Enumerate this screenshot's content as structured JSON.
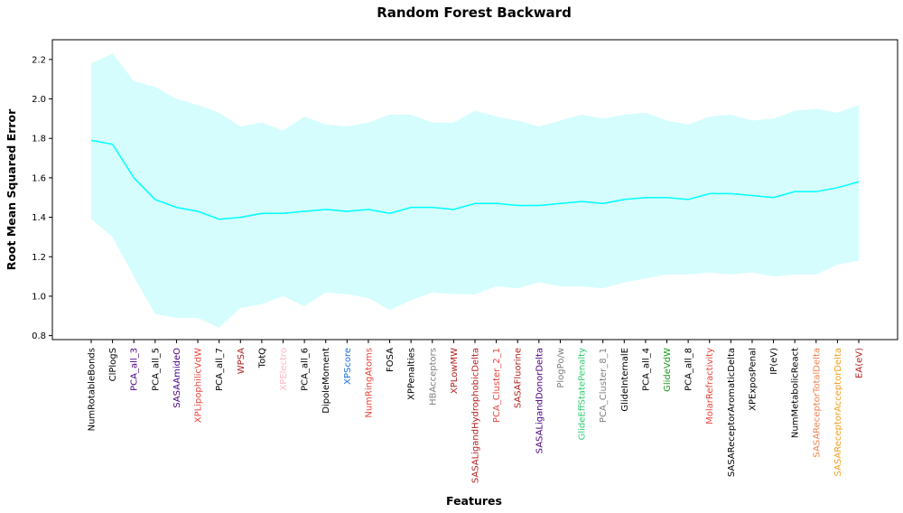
{
  "chart_data": {
    "type": "line",
    "title": "Random Forest Backward",
    "xlabel": "Features",
    "ylabel": "Root Mean Squared Error",
    "ylim": [
      0.78,
      2.3
    ],
    "yticks": [
      0.8,
      1.0,
      1.2,
      1.4,
      1.6,
      1.8,
      2.0,
      2.2
    ],
    "ytick_labels": [
      "0.8",
      "1.0",
      "1.2",
      "1.4",
      "1.6",
      "1.8",
      "2.0",
      "2.2"
    ],
    "grid": false,
    "line_color": "#00ffff",
    "band_color": "#d5fdfd",
    "categories": [
      "NumRotableBonds",
      "ClPlogS",
      "PCA_all_3",
      "PCA_all_5",
      "SASAAmideO",
      "XPLipophilicVdW",
      "PCA_all_7",
      "WPSA",
      "TotQ",
      "XPElectro",
      "PCA_all_6",
      "DipoleMoment",
      "XPScore",
      "NumRingAtoms",
      "FOSA",
      "XPPenalties",
      "HBAcceptors",
      "XPLowMW",
      "SASALigandHydrophobicDelta",
      "PCA_Cluster_2_1",
      "SASAFluorine",
      "SASALigandDonorDelta",
      "PlogPo/w",
      "GlideEffStatePenalty",
      "PCA_Cluster_8_1",
      "GlideInternalE",
      "PCA_all_4",
      "GlideVdW",
      "PCA_all_8",
      "MolarRefractivity",
      "SASAReceptorAromaticDelta",
      "XPExposPenal",
      "IP(eV)",
      "NumMetabolicReact",
      "SASAReceptorTotalDelta",
      "SASAReceptorAcceptorDelta",
      "EA(eV)"
    ],
    "category_colors": [
      "#000000",
      "#000000",
      "#4b0082",
      "#000000",
      "#4b0082",
      "#e8453c",
      "#000000",
      "#b22222",
      "#000000",
      "#ffb6c1",
      "#000000",
      "#000000",
      "#1e6fd9",
      "#e8453c",
      "#000000",
      "#000000",
      "#808080",
      "#b22222",
      "#b22222",
      "#e8453c",
      "#b22222",
      "#4b0082",
      "#808080",
      "#2ecc71",
      "#808080",
      "#000000",
      "#000000",
      "#1a9e1a",
      "#000000",
      "#e8453c",
      "#000000",
      "#000000",
      "#000000",
      "#000000",
      "#f08050",
      "#f0a020",
      "#b22222"
    ],
    "series": [
      {
        "name": "mean",
        "values": [
          1.79,
          1.77,
          1.6,
          1.49,
          1.45,
          1.43,
          1.39,
          1.4,
          1.42,
          1.42,
          1.43,
          1.44,
          1.43,
          1.44,
          1.42,
          1.45,
          1.45,
          1.44,
          1.47,
          1.47,
          1.46,
          1.46,
          1.47,
          1.48,
          1.47,
          1.49,
          1.5,
          1.5,
          1.49,
          1.52,
          1.52,
          1.51,
          1.5,
          1.53,
          1.53,
          1.55,
          1.58
        ]
      },
      {
        "name": "upper",
        "values": [
          2.18,
          2.23,
          2.09,
          2.06,
          2.0,
          1.97,
          1.93,
          1.86,
          1.88,
          1.84,
          1.91,
          1.87,
          1.86,
          1.88,
          1.92,
          1.92,
          1.88,
          1.88,
          1.94,
          1.91,
          1.89,
          1.86,
          1.89,
          1.92,
          1.9,
          1.92,
          1.93,
          1.89,
          1.87,
          1.91,
          1.92,
          1.89,
          1.9,
          1.94,
          1.95,
          1.93,
          1.97
        ]
      },
      {
        "name": "lower",
        "values": [
          1.39,
          1.3,
          1.1,
          0.91,
          0.89,
          0.89,
          0.84,
          0.94,
          0.96,
          1.0,
          0.95,
          1.02,
          1.01,
          0.99,
          0.93,
          0.98,
          1.02,
          1.01,
          1.01,
          1.05,
          1.04,
          1.07,
          1.05,
          1.05,
          1.04,
          1.07,
          1.09,
          1.11,
          1.11,
          1.12,
          1.11,
          1.12,
          1.1,
          1.11,
          1.11,
          1.16,
          1.18
        ]
      }
    ]
  }
}
